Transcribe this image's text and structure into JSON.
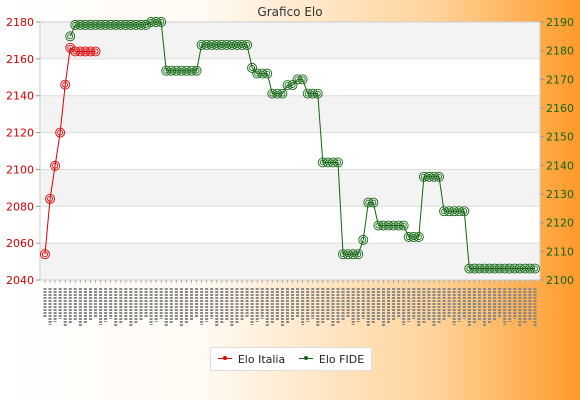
{
  "chart_data": {
    "type": "line",
    "title": "Grafico Elo",
    "xlabel": "",
    "ylabel": "",
    "ylim_left": [
      2040,
      2180
    ],
    "yticks_left": [
      2040,
      2060,
      2080,
      2100,
      2120,
      2140,
      2160,
      2180
    ],
    "ylim_right": [
      2100,
      2190
    ],
    "yticks_right": [
      2100,
      2110,
      2120,
      2130,
      2140,
      2150,
      2160,
      2170,
      2180,
      2190
    ],
    "x_count": 98,
    "x_tick_labels_legible": false,
    "grid": true,
    "legend_position": "bottom-center",
    "series": [
      {
        "name": "Elo Italia",
        "axis": "left",
        "color": "#dd0000",
        "x": [
          0,
          1,
          2,
          3,
          4,
          5,
          6,
          7,
          8,
          9,
          10
        ],
        "values": [
          2054,
          2084,
          2102,
          2120,
          2146,
          2166,
          2164,
          2164,
          2164,
          2164,
          2164
        ]
      },
      {
        "name": "Elo FIDE",
        "axis": "right",
        "color": "#116611",
        "x": [
          5,
          6,
          7,
          8,
          9,
          10,
          11,
          12,
          13,
          14,
          15,
          16,
          17,
          18,
          19,
          20,
          21,
          22,
          23,
          24,
          25,
          26,
          27,
          28,
          29,
          30,
          31,
          32,
          33,
          34,
          35,
          36,
          37,
          38,
          39,
          40,
          41,
          42,
          43,
          44,
          45,
          46,
          47,
          48,
          49,
          50,
          51,
          52,
          53,
          54,
          55,
          56,
          57,
          58,
          59,
          60,
          61,
          62,
          63,
          64,
          65,
          66,
          67,
          68,
          69,
          70,
          71,
          72,
          73,
          74,
          75,
          76,
          77,
          78,
          79,
          80,
          81,
          82,
          83,
          84,
          85,
          86,
          87,
          88,
          89,
          90,
          91,
          92,
          93,
          94,
          95,
          96,
          97
        ],
        "values": [
          2185,
          2189,
          2189,
          2189,
          2189,
          2189,
          2189,
          2189,
          2189,
          2189,
          2189,
          2189,
          2189,
          2189,
          2189,
          2189,
          2190,
          2190,
          2190,
          2173,
          2173,
          2173,
          2173,
          2173,
          2173,
          2173,
          2182,
          2182,
          2182,
          2182,
          2182,
          2182,
          2182,
          2182,
          2182,
          2182,
          2174,
          2172,
          2172,
          2172,
          2165,
          2165,
          2165,
          2168,
          2168,
          2170,
          2170,
          2165,
          2165,
          2165,
          2141,
          2141,
          2141,
          2141,
          2109,
          2109,
          2109,
          2109,
          2114,
          2127,
          2127,
          2119,
          2119,
          2119,
          2119,
          2119,
          2119,
          2115,
          2115,
          2115,
          2136,
          2136,
          2136,
          2136,
          2124,
          2124,
          2124,
          2124,
          2124,
          2104,
          2104,
          2104,
          2104,
          2104,
          2104,
          2104,
          2104,
          2104,
          2104,
          2104,
          2104,
          2104,
          2104
        ]
      }
    ]
  }
}
